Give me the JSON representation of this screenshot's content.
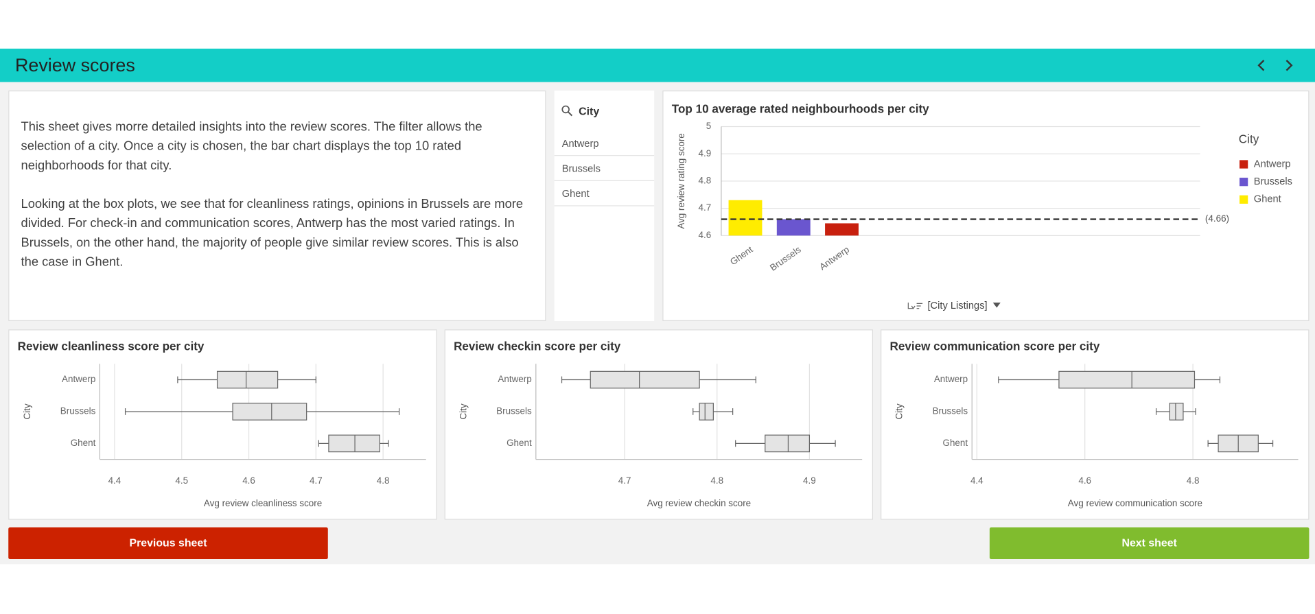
{
  "header": {
    "title": "Review scores"
  },
  "description": [
    "This sheet gives morre detailed insights into the review scores. The filter allows the selection of a city. Once a city is chosen, the bar chart displays the top 10 rated neighborhoods for that city.",
    "Looking at the box plots, we see that for cleanliness ratings, opinions in Brussels are more divided. For check-in and communication scores, Antwerp has the most varied ratings. In Brussels, on the other hand, the majority of people give similar review scores. This is also the case in Ghent."
  ],
  "filter": {
    "title": "City",
    "items": [
      "Antwerp",
      "Brussels",
      "Ghent"
    ]
  },
  "chart_data": [
    {
      "type": "bar",
      "title": "Top 10 average rated neighbourhoods per city",
      "y_label": "Avg review rating score",
      "x_label": "[City Listings]",
      "categories": [
        "Ghent",
        "Brussels",
        "Antwerp"
      ],
      "values": [
        4.73,
        4.66,
        4.645
      ],
      "colors": [
        "#ffec00",
        "#6a56cf",
        "#c8200e"
      ],
      "ylim": [
        4.6,
        5
      ],
      "yticks": [
        4.6,
        4.7,
        4.8,
        4.9,
        5
      ],
      "grid": true,
      "reference_line": {
        "value": 4.66,
        "label": "(4.66)"
      },
      "legend": {
        "title": "City",
        "entries": [
          {
            "name": "Antwerp",
            "color": "#c8200e"
          },
          {
            "name": "Brussels",
            "color": "#6a56cf"
          },
          {
            "name": "Ghent",
            "color": "#ffec00"
          }
        ]
      }
    },
    {
      "type": "boxplot",
      "title": "Review cleanliness score per city",
      "y_label": "City",
      "x_label": "Avg review cleanliness score",
      "categories": [
        "Antwerp",
        "Brussels",
        "Ghent"
      ],
      "boxes": [
        {
          "min": 4.494,
          "q1": 4.553,
          "median": 4.596,
          "q3": 4.643,
          "max": 4.7
        },
        {
          "min": 4.416,
          "q1": 4.576,
          "median": 4.634,
          "q3": 4.686,
          "max": 4.824
        },
        {
          "min": 4.704,
          "q1": 4.719,
          "median": 4.758,
          "q3": 4.795,
          "max": 4.808
        }
      ],
      "xlim": [
        4.378,
        4.864
      ],
      "xticks": [
        4.4,
        4.5,
        4.6,
        4.7,
        4.8
      ],
      "grid": true,
      "color": "#e4e4e4"
    },
    {
      "type": "boxplot",
      "title": "Review checkin score per city",
      "y_label": "City",
      "x_label": "Avg review checkin score",
      "categories": [
        "Antwerp",
        "Brussels",
        "Ghent"
      ],
      "boxes": [
        {
          "min": 4.632,
          "q1": 4.663,
          "median": 4.716,
          "q3": 4.781,
          "max": 4.842
        },
        {
          "min": 4.774,
          "q1": 4.781,
          "median": 4.787,
          "q3": 4.796,
          "max": 4.817
        },
        {
          "min": 4.82,
          "q1": 4.852,
          "median": 4.877,
          "q3": 4.9,
          "max": 4.928
        }
      ],
      "xlim": [
        4.604,
        4.957
      ],
      "xticks": [
        4.7,
        4.8,
        4.9
      ],
      "grid": true,
      "color": "#e4e4e4"
    },
    {
      "type": "boxplot",
      "title": "Review communication score per city",
      "y_label": "City",
      "x_label": "Avg review communication score",
      "categories": [
        "Antwerp",
        "Brussels",
        "Ghent"
      ],
      "boxes": [
        {
          "min": 4.44,
          "q1": 4.552,
          "median": 4.687,
          "q3": 4.803,
          "max": 4.85
        },
        {
          "min": 4.732,
          "q1": 4.757,
          "median": 4.768,
          "q3": 4.782,
          "max": 4.805
        },
        {
          "min": 4.828,
          "q1": 4.847,
          "median": 4.884,
          "q3": 4.921,
          "max": 4.948
        }
      ],
      "xlim": [
        4.391,
        4.995
      ],
      "xticks": [
        4.4,
        4.6,
        4.8
      ],
      "grid": true,
      "color": "#e4e4e4"
    }
  ],
  "buttons": {
    "previous": "Previous sheet",
    "next": "Next sheet"
  }
}
